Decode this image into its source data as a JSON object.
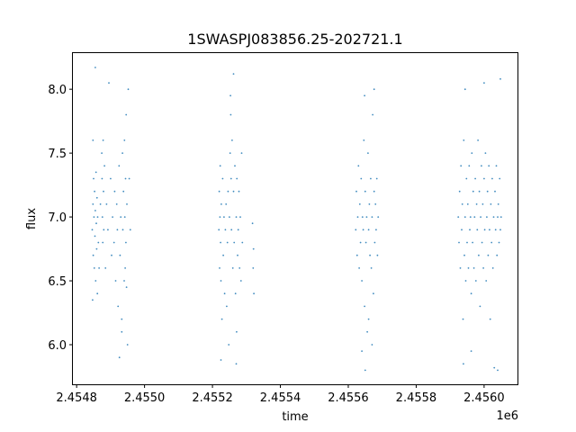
{
  "chart_data": {
    "type": "scatter",
    "title": "1SWASPJ083856.25-202721.1",
    "xlabel": "time",
    "ylabel": "flux",
    "x_offset_label": "1e6",
    "xlim": [
      2454789,
      2456101
    ],
    "ylim": [
      5.69,
      8.29
    ],
    "xticks": [
      2454800,
      2455000,
      2455200,
      2455400,
      2455600,
      2455800,
      2456000
    ],
    "xtick_labels": [
      "2.4548",
      "2.4550",
      "2.4552",
      "2.4554",
      "2.4556",
      "2.4558",
      "2.4560"
    ],
    "yticks": [
      6.0,
      6.5,
      7.0,
      7.5,
      8.0
    ],
    "ytick_labels": [
      "6.0",
      "6.5",
      "7.0",
      "7.5",
      "8.0"
    ],
    "grid": false,
    "marker_color": "#1f77b4",
    "points": [
      [
        2454846,
        6.9
      ],
      [
        2454848,
        7.1
      ],
      [
        2454849,
        6.7
      ],
      [
        2454850,
        7.3
      ],
      [
        2454851,
        7.0
      ],
      [
        2454852,
        6.6
      ],
      [
        2454853,
        7.2
      ],
      [
        2454854,
        6.85
      ],
      [
        2454855,
        7.05
      ],
      [
        2454856,
        6.5
      ],
      [
        2454857,
        7.35
      ],
      [
        2454858,
        6.95
      ],
      [
        2454859,
        6.75
      ],
      [
        2454860,
        7.15
      ],
      [
        2454861,
        6.4
      ],
      [
        2454862,
        7.0
      ],
      [
        2454847,
        6.35
      ],
      [
        2454848,
        7.6
      ],
      [
        2454855,
        8.17
      ],
      [
        2454864,
        6.8
      ],
      [
        2454866,
        6.6
      ],
      [
        2454870,
        7.1
      ],
      [
        2454874,
        7.5
      ],
      [
        2454875,
        7.3
      ],
      [
        2454876,
        7.0
      ],
      [
        2454877,
        6.8
      ],
      [
        2454878,
        7.6
      ],
      [
        2454879,
        7.2
      ],
      [
        2454880,
        6.9
      ],
      [
        2454882,
        7.4
      ],
      [
        2454885,
        6.6
      ],
      [
        2454888,
        7.1
      ],
      [
        2454892,
        6.9
      ],
      [
        2454895,
        8.05
      ],
      [
        2454900,
        7.3
      ],
      [
        2454903,
        6.7
      ],
      [
        2454906,
        7.0
      ],
      [
        2454910,
        6.8
      ],
      [
        2454912,
        7.2
      ],
      [
        2454915,
        6.5
      ],
      [
        2454918,
        7.1
      ],
      [
        2454920,
        6.9
      ],
      [
        2454922,
        6.3
      ],
      [
        2454925,
        7.4
      ],
      [
        2454928,
        6.7
      ],
      [
        2454930,
        7.0
      ],
      [
        2454933,
        6.2
      ],
      [
        2454935,
        7.5
      ],
      [
        2454936,
        6.9
      ],
      [
        2454938,
        7.2
      ],
      [
        2454940,
        6.5
      ],
      [
        2454941,
        7.6
      ],
      [
        2454942,
        7.0
      ],
      [
        2454943,
        6.6
      ],
      [
        2454944,
        7.3
      ],
      [
        2454945,
        6.8
      ],
      [
        2454946,
        7.8
      ],
      [
        2454947,
        6.45
      ],
      [
        2454948,
        7.1
      ],
      [
        2454950,
        6.0
      ],
      [
        2454952,
        8.0
      ],
      [
        2454955,
        7.3
      ],
      [
        2454958,
        6.9
      ],
      [
        2454926,
        5.9
      ],
      [
        2454933,
        6.1
      ],
      [
        2455219,
        6.9
      ],
      [
        2455220,
        7.2
      ],
      [
        2455221,
        6.6
      ],
      [
        2455222,
        7.0
      ],
      [
        2455223,
        7.4
      ],
      [
        2455224,
        6.8
      ],
      [
        2455225,
        6.5
      ],
      [
        2455226,
        7.1
      ],
      [
        2455228,
        6.2
      ],
      [
        2455230,
        7.3
      ],
      [
        2455232,
        6.7
      ],
      [
        2455234,
        7.0
      ],
      [
        2455236,
        6.4
      ],
      [
        2455238,
        6.9
      ],
      [
        2455240,
        7.1
      ],
      [
        2455242,
        6.3
      ],
      [
        2455244,
        6.8
      ],
      [
        2455246,
        7.2
      ],
      [
        2455248,
        6.0
      ],
      [
        2455250,
        7.0
      ],
      [
        2455252,
        7.5
      ],
      [
        2455254,
        7.8
      ],
      [
        2455255,
        7.3
      ],
      [
        2455256,
        6.9
      ],
      [
        2455258,
        7.6
      ],
      [
        2455260,
        6.6
      ],
      [
        2455262,
        7.2
      ],
      [
        2455264,
        6.8
      ],
      [
        2455266,
        7.4
      ],
      [
        2455268,
        6.4
      ],
      [
        2455270,
        7.0
      ],
      [
        2455271,
        6.1
      ],
      [
        2455272,
        7.3
      ],
      [
        2455274,
        6.7
      ],
      [
        2455276,
        6.9
      ],
      [
        2455278,
        7.2
      ],
      [
        2455280,
        6.6
      ],
      [
        2455282,
        7.0
      ],
      [
        2455284,
        6.5
      ],
      [
        2455286,
        7.5
      ],
      [
        2455288,
        6.8
      ],
      [
        2455253,
        7.95
      ],
      [
        2455270,
        5.85
      ],
      [
        2455262,
        8.12
      ],
      [
        2455225,
        5.88
      ],
      [
        2455318,
        6.95
      ],
      [
        2455320,
        6.6
      ],
      [
        2455322,
        6.4
      ],
      [
        2455321,
        6.75
      ],
      [
        2455622,
        6.9
      ],
      [
        2455624,
        7.2
      ],
      [
        2455626,
        6.7
      ],
      [
        2455628,
        7.0
      ],
      [
        2455630,
        7.4
      ],
      [
        2455632,
        6.6
      ],
      [
        2455634,
        7.1
      ],
      [
        2455636,
        6.8
      ],
      [
        2455638,
        7.3
      ],
      [
        2455640,
        6.5
      ],
      [
        2455642,
        7.0
      ],
      [
        2455644,
        6.9
      ],
      [
        2455646,
        7.6
      ],
      [
        2455648,
        6.3
      ],
      [
        2455650,
        7.2
      ],
      [
        2455652,
        6.8
      ],
      [
        2455654,
        7.0
      ],
      [
        2455656,
        6.1
      ],
      [
        2455658,
        7.5
      ],
      [
        2455660,
        6.9
      ],
      [
        2455662,
        7.1
      ],
      [
        2455664,
        6.7
      ],
      [
        2455666,
        7.3
      ],
      [
        2455668,
        6.6
      ],
      [
        2455670,
        7.0
      ],
      [
        2455672,
        7.8
      ],
      [
        2455674,
        6.4
      ],
      [
        2455676,
        7.2
      ],
      [
        2455678,
        6.8
      ],
      [
        2455680,
        7.1
      ],
      [
        2455682,
        6.9
      ],
      [
        2455684,
        7.3
      ],
      [
        2455686,
        6.7
      ],
      [
        2455688,
        7.0
      ],
      [
        2455650,
        5.8
      ],
      [
        2455648,
        7.95
      ],
      [
        2455640,
        5.95
      ],
      [
        2455670,
        6.0
      ],
      [
        2455676,
        8.0
      ],
      [
        2455660,
        6.2
      ],
      [
        2455924,
        7.0
      ],
      [
        2455926,
        6.8
      ],
      [
        2455928,
        7.2
      ],
      [
        2455930,
        6.6
      ],
      [
        2455932,
        7.4
      ],
      [
        2455934,
        6.9
      ],
      [
        2455936,
        7.1
      ],
      [
        2455938,
        6.2
      ],
      [
        2455939,
        5.85
      ],
      [
        2455940,
        7.6
      ],
      [
        2455942,
        6.7
      ],
      [
        2455944,
        7.0
      ],
      [
        2455946,
        6.5
      ],
      [
        2455948,
        7.3
      ],
      [
        2455950,
        6.8
      ],
      [
        2455952,
        7.1
      ],
      [
        2455954,
        6.6
      ],
      [
        2455956,
        7.4
      ],
      [
        2455958,
        6.9
      ],
      [
        2455960,
        7.0
      ],
      [
        2455962,
        6.4
      ],
      [
        2455964,
        7.5
      ],
      [
        2455966,
        6.8
      ],
      [
        2455968,
        7.2
      ],
      [
        2455970,
        6.6
      ],
      [
        2455972,
        7.0
      ],
      [
        2455974,
        7.3
      ],
      [
        2455976,
        6.5
      ],
      [
        2455978,
        7.1
      ],
      [
        2455980,
        6.9
      ],
      [
        2455982,
        7.6
      ],
      [
        2455984,
        6.7
      ],
      [
        2455986,
        7.2
      ],
      [
        2455988,
        6.3
      ],
      [
        2455990,
        7.0
      ],
      [
        2455992,
        7.4
      ],
      [
        2455994,
        6.8
      ],
      [
        2455996,
        7.1
      ],
      [
        2455998,
        6.6
      ],
      [
        2456000,
        7.3
      ],
      [
        2456002,
        6.9
      ],
      [
        2456004,
        7.5
      ],
      [
        2456006,
        6.5
      ],
      [
        2456008,
        7.0
      ],
      [
        2456010,
        7.2
      ],
      [
        2456012,
        6.7
      ],
      [
        2456014,
        7.4
      ],
      [
        2456016,
        6.9
      ],
      [
        2456018,
        6.2
      ],
      [
        2456020,
        7.1
      ],
      [
        2456022,
        6.8
      ],
      [
        2456024,
        7.3
      ],
      [
        2456026,
        6.6
      ],
      [
        2456028,
        7.0
      ],
      [
        2456030,
        5.82
      ],
      [
        2456032,
        7.2
      ],
      [
        2456034,
        6.9
      ],
      [
        2456036,
        7.4
      ],
      [
        2456038,
        6.7
      ],
      [
        2456040,
        7.0
      ],
      [
        2456042,
        7.1
      ],
      [
        2456044,
        6.8
      ],
      [
        2456046,
        7.3
      ],
      [
        2456048,
        6.9
      ],
      [
        2456050,
        7.0
      ],
      [
        2456000,
        8.05
      ],
      [
        2455944,
        8.0
      ],
      [
        2456048,
        8.08
      ],
      [
        2455962,
        5.95
      ],
      [
        2456040,
        5.8
      ]
    ]
  }
}
